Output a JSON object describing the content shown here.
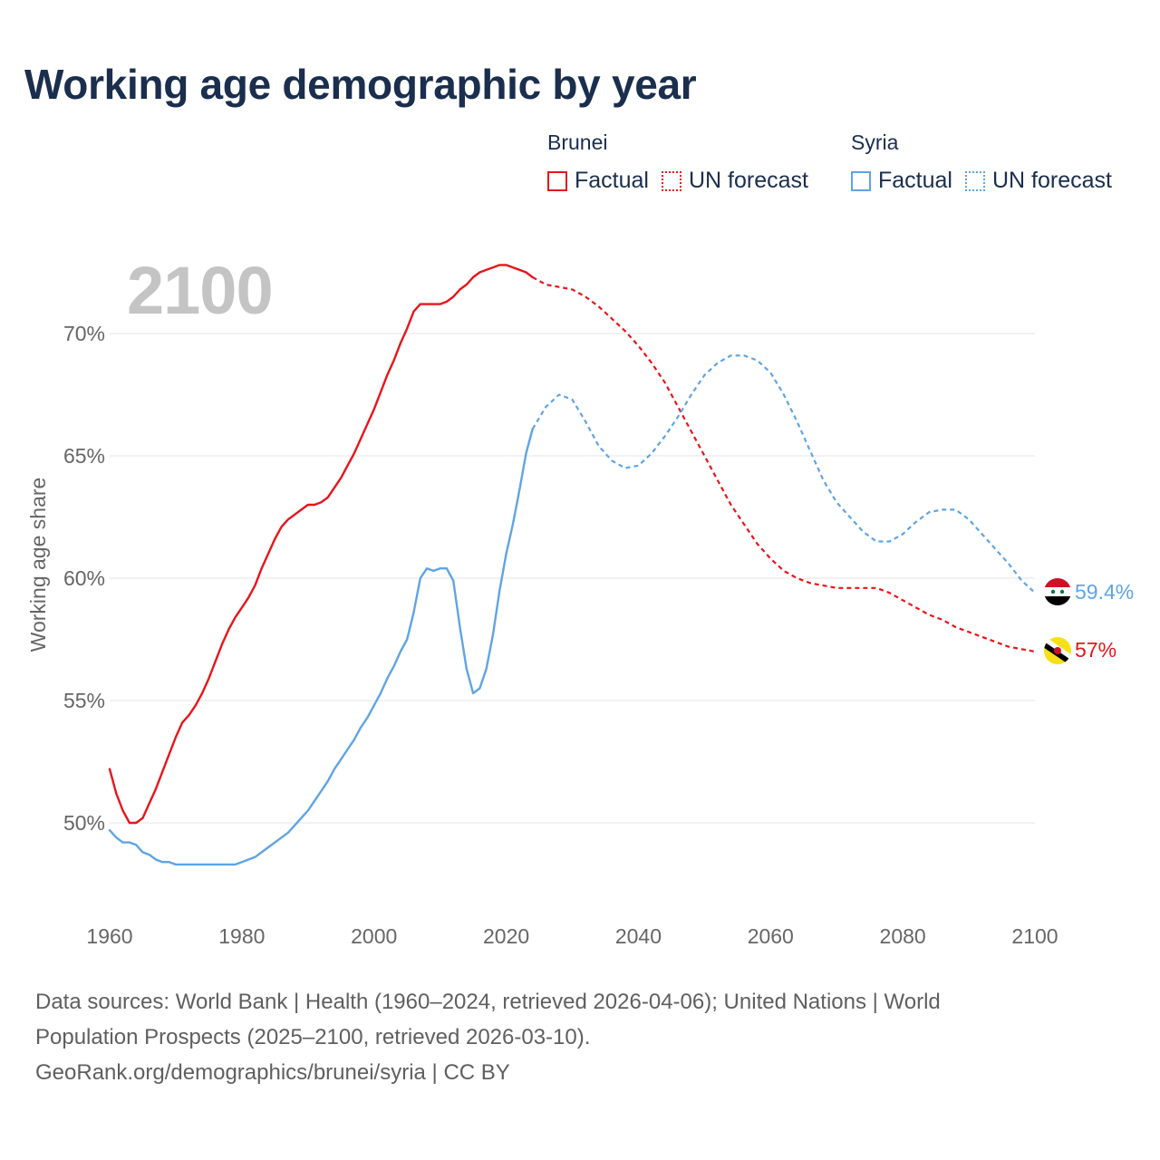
{
  "title": "Working age demographic by year",
  "current_year_label": "2100",
  "legend": {
    "groups": [
      {
        "country": "Brunei",
        "color": "#e8141b",
        "factual_label": "Factual",
        "forecast_label": "UN forecast"
      },
      {
        "country": "Syria",
        "color": "#5fa4e4",
        "factual_label": "Factual",
        "forecast_label": "UN forecast"
      }
    ]
  },
  "chart_data": {
    "type": "line",
    "title": "Working age demographic by year",
    "xlabel": "",
    "ylabel": "Working age share",
    "xlim": [
      1960,
      2100
    ],
    "ylim": [
      46,
      74
    ],
    "x_ticks": [
      "1960",
      "1980",
      "2000",
      "2020",
      "2040",
      "2060",
      "2080",
      "2100"
    ],
    "y_ticks": [
      "50%",
      "55%",
      "60%",
      "65%",
      "70%"
    ],
    "grid": true,
    "factual_range": [
      1960,
      2024
    ],
    "forecast_range": [
      2024,
      2100
    ],
    "series": [
      {
        "name": "Brunei",
        "color": "#e8141b",
        "end_label": "57%",
        "factual": {
          "x": [
            1960,
            1961,
            1962,
            1963,
            1964,
            1965,
            1966,
            1967,
            1968,
            1969,
            1970,
            1971,
            1972,
            1973,
            1974,
            1975,
            1976,
            1977,
            1978,
            1979,
            1980,
            1981,
            1982,
            1983,
            1984,
            1985,
            1986,
            1987,
            1988,
            1989,
            1990,
            1991,
            1992,
            1993,
            1994,
            1995,
            1996,
            1997,
            1998,
            1999,
            2000,
            2001,
            2002,
            2003,
            2004,
            2005,
            2006,
            2007,
            2008,
            2009,
            2010,
            2011,
            2012,
            2013,
            2014,
            2015,
            2016,
            2017,
            2018,
            2019,
            2020,
            2021,
            2022,
            2023,
            2024
          ],
          "values": [
            52.2,
            51.2,
            50.5,
            50.0,
            50.0,
            50.2,
            50.8,
            51.4,
            52.1,
            52.8,
            53.5,
            54.1,
            54.4,
            54.8,
            55.3,
            55.9,
            56.6,
            57.3,
            57.9,
            58.4,
            58.8,
            59.2,
            59.7,
            60.4,
            61.0,
            61.6,
            62.1,
            62.4,
            62.6,
            62.8,
            63.0,
            63.0,
            63.1,
            63.3,
            63.7,
            64.1,
            64.6,
            65.1,
            65.7,
            66.3,
            66.9,
            67.6,
            68.3,
            68.9,
            69.6,
            70.2,
            70.9,
            71.2,
            71.2,
            71.2,
            71.2,
            71.3,
            71.5,
            71.8,
            72.0,
            72.3,
            72.5,
            72.6,
            72.7,
            72.8,
            72.8,
            72.7,
            72.6,
            72.5,
            72.3
          ]
        },
        "forecast": {
          "x": [
            2024,
            2026,
            2028,
            2030,
            2032,
            2034,
            2036,
            2038,
            2040,
            2042,
            2044,
            2046,
            2048,
            2050,
            2052,
            2054,
            2056,
            2058,
            2060,
            2062,
            2064,
            2066,
            2068,
            2070,
            2072,
            2074,
            2076,
            2078,
            2080,
            2082,
            2084,
            2086,
            2088,
            2090,
            2092,
            2094,
            2096,
            2098,
            2100
          ],
          "values": [
            72.3,
            72.0,
            71.9,
            71.8,
            71.5,
            71.1,
            70.6,
            70.1,
            69.5,
            68.8,
            68.0,
            67.0,
            66.0,
            65.0,
            64.0,
            63.0,
            62.2,
            61.4,
            60.8,
            60.3,
            60.0,
            59.8,
            59.7,
            59.6,
            59.6,
            59.6,
            59.6,
            59.4,
            59.1,
            58.8,
            58.5,
            58.3,
            58.0,
            57.8,
            57.6,
            57.4,
            57.2,
            57.1,
            57.0
          ]
        }
      },
      {
        "name": "Syria",
        "color": "#5fa4e4",
        "end_label": "59.4%",
        "factual": {
          "x": [
            1960,
            1961,
            1962,
            1963,
            1964,
            1965,
            1966,
            1967,
            1968,
            1969,
            1970,
            1971,
            1972,
            1973,
            1974,
            1975,
            1976,
            1977,
            1978,
            1979,
            1980,
            1981,
            1982,
            1983,
            1984,
            1985,
            1986,
            1987,
            1988,
            1989,
            1990,
            1991,
            1992,
            1993,
            1994,
            1995,
            1996,
            1997,
            1998,
            1999,
            2000,
            2001,
            2002,
            2003,
            2004,
            2005,
            2006,
            2007,
            2008,
            2009,
            2010,
            2011,
            2012,
            2013,
            2014,
            2015,
            2016,
            2017,
            2018,
            2019,
            2020,
            2021,
            2022,
            2023,
            2024
          ],
          "values": [
            49.7,
            49.4,
            49.2,
            49.2,
            49.1,
            48.8,
            48.7,
            48.5,
            48.4,
            48.4,
            48.3,
            48.3,
            48.3,
            48.3,
            48.3,
            48.3,
            48.3,
            48.3,
            48.3,
            48.3,
            48.4,
            48.5,
            48.6,
            48.8,
            49.0,
            49.2,
            49.4,
            49.6,
            49.9,
            50.2,
            50.5,
            50.9,
            51.3,
            51.7,
            52.2,
            52.6,
            53.0,
            53.4,
            53.9,
            54.3,
            54.8,
            55.3,
            55.9,
            56.4,
            57.0,
            57.5,
            58.6,
            60.0,
            60.4,
            60.3,
            60.4,
            60.4,
            59.9,
            58.0,
            56.3,
            55.3,
            55.5,
            56.3,
            57.7,
            59.5,
            61.0,
            62.2,
            63.6,
            65.1,
            66.1
          ]
        },
        "forecast": {
          "x": [
            2024,
            2026,
            2028,
            2030,
            2032,
            2034,
            2036,
            2038,
            2040,
            2042,
            2044,
            2046,
            2048,
            2050,
            2052,
            2054,
            2056,
            2058,
            2060,
            2062,
            2064,
            2066,
            2068,
            2070,
            2072,
            2074,
            2076,
            2078,
            2080,
            2082,
            2084,
            2086,
            2088,
            2090,
            2092,
            2094,
            2096,
            2098,
            2100
          ],
          "values": [
            66.1,
            67.0,
            67.5,
            67.3,
            66.4,
            65.4,
            64.8,
            64.5,
            64.6,
            65.1,
            65.8,
            66.6,
            67.5,
            68.3,
            68.8,
            69.1,
            69.1,
            68.9,
            68.4,
            67.5,
            66.4,
            65.2,
            64.0,
            63.1,
            62.5,
            61.9,
            61.5,
            61.5,
            61.8,
            62.3,
            62.7,
            62.8,
            62.8,
            62.4,
            61.8,
            61.2,
            60.6,
            59.9,
            59.4
          ]
        }
      }
    ]
  },
  "footer": {
    "sources_line1": "Data sources: World Bank | Health (1960–2024, retrieved 2026-04-06); United Nations | World",
    "sources_line2": "Population Prospects (2025–2100, retrieved 2026-03-10).",
    "attribution": "GeoRank.org/demographics/brunei/syria | CC BY"
  },
  "icons": {
    "syria_flag": "syria-flag-icon",
    "brunei_flag": "brunei-flag-icon"
  }
}
